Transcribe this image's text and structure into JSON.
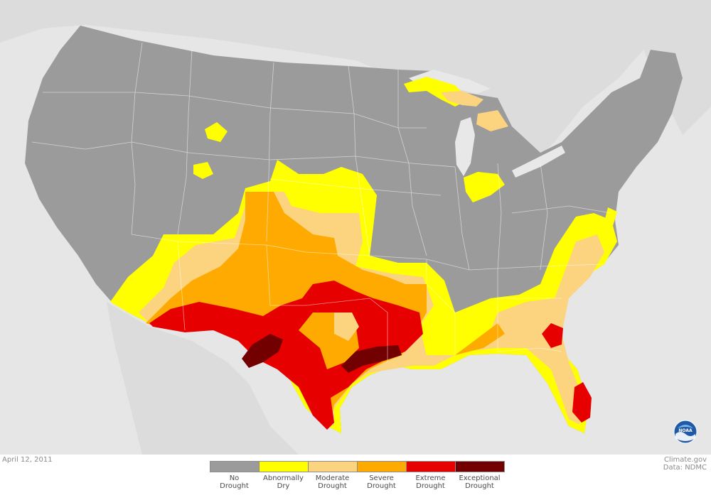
{
  "map": {
    "date": "April 12, 2011",
    "credit_line1": "Climate.gov",
    "credit_line2": "Data: NDMC",
    "logo_text": "NOAA"
  },
  "colors": {
    "ocean": "#e6e6e6",
    "land_other": "#dcdcdc",
    "us_land": "#9b9b9b",
    "state_border": "#ffffff",
    "water": "#e8e8e8"
  },
  "legend": [
    {
      "line1": "No",
      "line2": "Drought",
      "color": "#9b9b9b"
    },
    {
      "line1": "Abnormally",
      "line2": "Dry",
      "color": "#ffff00"
    },
    {
      "line1": "Moderate",
      "line2": "Drought",
      "color": "#fcd37f"
    },
    {
      "line1": "Severe",
      "line2": "Drought",
      "color": "#ffaa00"
    },
    {
      "line1": "Extreme",
      "line2": "Drought",
      "color": "#e60000"
    },
    {
      "line1": "Exceptional",
      "line2": "Drought",
      "color": "#730000"
    }
  ]
}
